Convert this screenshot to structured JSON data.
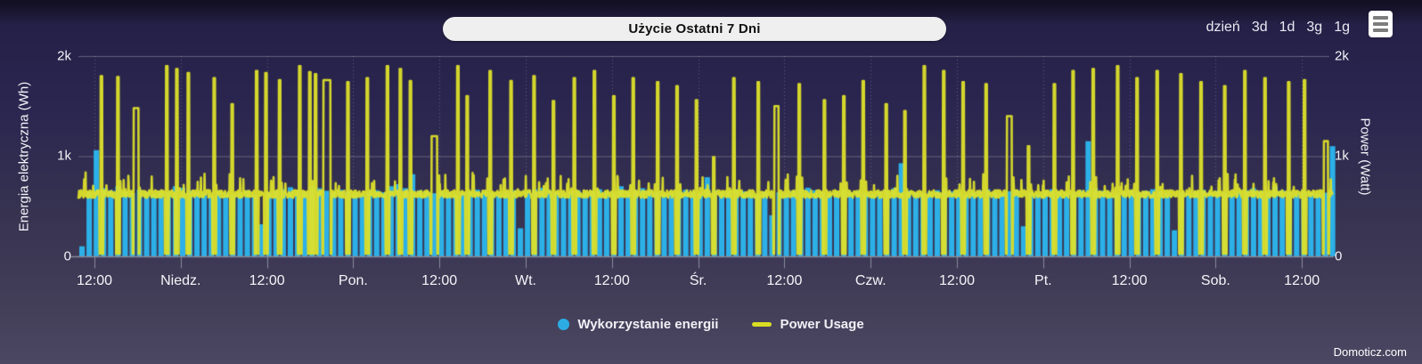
{
  "header": {
    "title": "Użycie Ostatni 7 Dni",
    "ranges": [
      "dzień",
      "3d",
      "1d",
      "3g",
      "1g"
    ]
  },
  "footer": {
    "credit": "Domoticz.com"
  },
  "colors": {
    "bar": "#2cb0e8",
    "line": "#dde02a",
    "grid": "rgba(255,255,255,0.28)",
    "grid_dotted": "rgba(255,255,255,0.25)",
    "axis": "#8b8b9a",
    "text": "#f4f4f8",
    "background_top": "#252047",
    "background_bottom": "#4b4762"
  },
  "chart_data": {
    "type": "combo",
    "title": "Użycie Ostatni 7 Dni",
    "x_ticks": [
      "12:00",
      "Niedz.",
      "12:00",
      "Pon.",
      "12:00",
      "Wt.",
      "12:00",
      "Śr.",
      "12:00",
      "Czw.",
      "12:00",
      "Pt.",
      "12:00",
      "Sob.",
      "12:00"
    ],
    "x_tick_interval_hours": 12,
    "y_left": {
      "title": "Energia elektryczna (Wh)",
      "ticks": [
        "0",
        "1k",
        "2k"
      ],
      "range": [
        0,
        2000
      ]
    },
    "y_right": {
      "title": "Power (Watt)",
      "ticks": [
        "0",
        "1k",
        "2k"
      ],
      "range": [
        0,
        2000
      ]
    },
    "grid": true,
    "legend_position": "bottom-center",
    "series": [
      {
        "name": "Wykorzystanie energii",
        "type": "column",
        "unit": "Wh",
        "color": "#2cb0e8",
        "values": [
          100,
          640,
          1060,
          680,
          660,
          700,
          650,
          630,
          665,
          645,
          620,
          655,
          640,
          700,
          685,
          660,
          640,
          625,
          610,
          650,
          635,
          620,
          640,
          660,
          615,
          320,
          640,
          655,
          670,
          690,
          660,
          645,
          700,
          680,
          655,
          640,
          665,
          650,
          635,
          620,
          645,
          660,
          640,
          700,
          720,
          680,
          820,
          660,
          645,
          630,
          655,
          640,
          620,
          635,
          650,
          665,
          645,
          630,
          615,
          640,
          660,
          280,
          650,
          670,
          685,
          655,
          640,
          625,
          645,
          660,
          640,
          655,
          670,
          650,
          635,
          700,
          645,
          660,
          680,
          655,
          640,
          620,
          635,
          650,
          665,
          645,
          630,
          790,
          660,
          640,
          655,
          670,
          650,
          635,
          620,
          645,
          410,
          640,
          625,
          655,
          670,
          685,
          660,
          645,
          630,
          650,
          665,
          640,
          655,
          635,
          620,
          645,
          660,
          680,
          930,
          655,
          640,
          625,
          645,
          660,
          675,
          650,
          635,
          620,
          640,
          655,
          670,
          645,
          630,
          650,
          665,
          300,
          640,
          625,
          655,
          670,
          650,
          635,
          645,
          660,
          1150,
          680,
          655,
          640,
          625,
          645,
          660,
          640,
          655,
          670,
          650,
          635,
          260,
          645,
          630,
          650,
          665,
          640,
          655,
          635,
          620,
          645,
          660,
          680,
          655,
          640,
          700,
          660,
          645,
          630,
          655,
          640,
          620,
          635,
          1100
        ]
      },
      {
        "name": "Power Usage",
        "type": "line",
        "unit": "Watt",
        "color": "#dde02a",
        "baseline_range": [
          585,
          660
        ],
        "dip_value": 25,
        "spikes": [
          [
            3.2,
            1800
          ],
          [
            5.5,
            1790
          ],
          [
            8.0,
            1480,
            0.35
          ],
          [
            12.3,
            1900
          ],
          [
            13.7,
            1870
          ],
          [
            15.3,
            1830
          ],
          [
            18.9,
            1780
          ],
          [
            21.4,
            1520
          ],
          [
            24.8,
            1850
          ],
          [
            26.1,
            1830
          ],
          [
            28.0,
            1760
          ],
          [
            30.8,
            1900
          ],
          [
            32.2,
            1840
          ],
          [
            33.0,
            1820
          ],
          [
            34.6,
            1760,
            0.5
          ],
          [
            37.5,
            1740
          ],
          [
            40.2,
            1780
          ],
          [
            43.0,
            1900
          ],
          [
            44.8,
            1870
          ],
          [
            46.2,
            1750
          ],
          [
            49.5,
            1200,
            0.4
          ],
          [
            52.8,
            1900
          ],
          [
            54.1,
            1600
          ],
          [
            57.3,
            1850
          ],
          [
            60.2,
            1750
          ],
          [
            63.4,
            1800
          ],
          [
            66.1,
            1550
          ],
          [
            69.0,
            1780
          ],
          [
            71.8,
            1850
          ],
          [
            74.5,
            1600
          ],
          [
            77.2,
            1780
          ],
          [
            80.6,
            1740
          ],
          [
            83.3,
            1700
          ],
          [
            86.0,
            1560
          ],
          [
            88.4,
            990
          ],
          [
            91.2,
            1780
          ],
          [
            94.6,
            1740
          ],
          [
            97.1,
            1500,
            0.3
          ],
          [
            100.3,
            1720
          ],
          [
            103.8,
            1560
          ],
          [
            106.5,
            1600
          ],
          [
            109.2,
            1750
          ],
          [
            112.4,
            1520
          ],
          [
            115.0,
            1450
          ],
          [
            117.7,
            1900
          ],
          [
            120.4,
            1850
          ],
          [
            123.1,
            1740
          ],
          [
            126.3,
            1720
          ],
          [
            129.5,
            1400,
            0.35
          ],
          [
            132.2,
            1100
          ],
          [
            135.8,
            1720
          ],
          [
            138.4,
            1850
          ],
          [
            141.2,
            1870
          ],
          [
            144.6,
            1900
          ],
          [
            147.3,
            1780
          ],
          [
            150.1,
            1850
          ],
          [
            153.4,
            1820
          ],
          [
            156.2,
            1740
          ],
          [
            159.5,
            1700
          ],
          [
            162.3,
            1850
          ],
          [
            165.1,
            1780
          ],
          [
            168.4,
            1740
          ],
          [
            170.6,
            1760
          ],
          [
            173.6,
            1150,
            0.3
          ]
        ]
      }
    ]
  }
}
